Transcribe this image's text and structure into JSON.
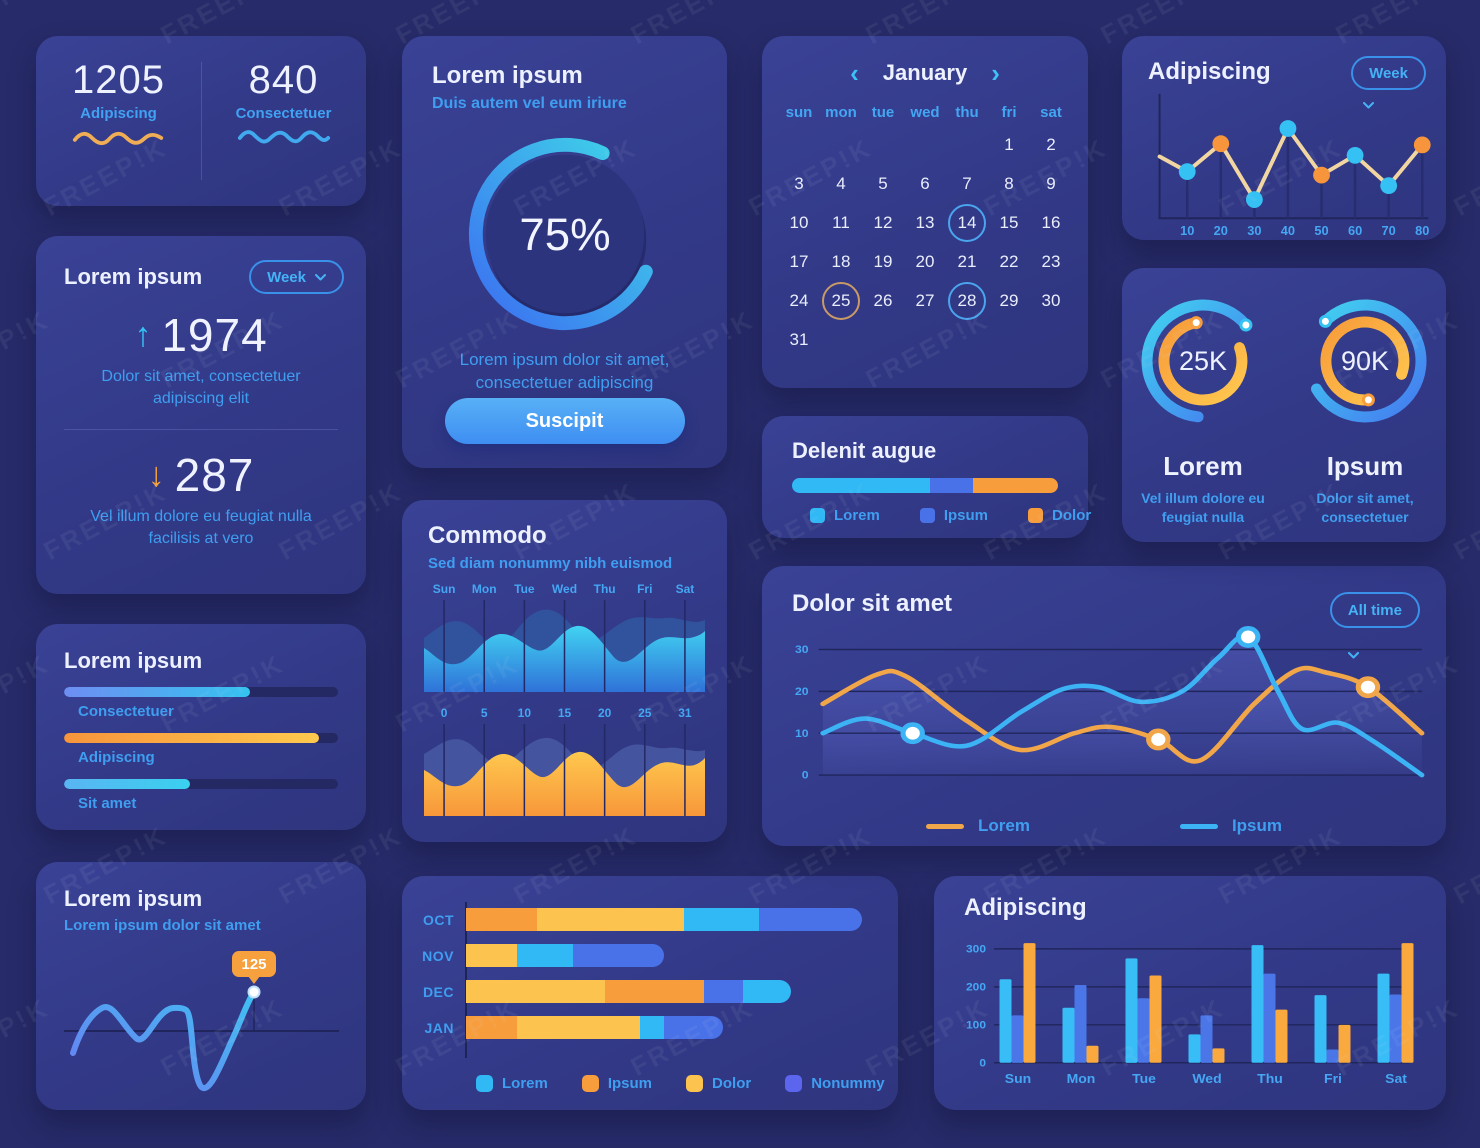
{
  "watermark": {
    "text": "FREEP!K"
  },
  "colors": {
    "background": "#272b69",
    "card": "#323987",
    "cyan": "#30b9f4",
    "orange": "#f79d3c",
    "yellow": "#fcc44e",
    "royal": "#4a72e8",
    "periwinkle": "#5b65ee",
    "text_blue": "#3f9ef0",
    "white": "#eef2ff",
    "tan_line": "#f2d6a2"
  },
  "cards": {
    "stats_duo": {
      "left": {
        "value": "1205",
        "label": "Adipiscing"
      },
      "right": {
        "value": "840",
        "label": "Consectetuer"
      }
    },
    "week_stats": {
      "title": "Lorem ipsum",
      "dropdown_label": "Week",
      "up": {
        "value": "1974",
        "desc": "Dolor sit amet, consectetuer adipiscing elit"
      },
      "down": {
        "value": "287",
        "desc": "Vel illum dolore eu feugiat nulla facilisis at vero"
      }
    },
    "progress": {
      "title": "Lorem ipsum",
      "bars": [
        {
          "label": "Consectetuer",
          "percent": 68,
          "color": "blue"
        },
        {
          "label": "Adipiscing",
          "percent": 93,
          "color": "orange"
        },
        {
          "label": "Sit amet",
          "percent": 46,
          "color": "cyan"
        }
      ]
    },
    "spline_card": {
      "title": "Lorem ipsum",
      "subtitle": "Lorem ipsum dolor sit amet",
      "tooltip_value": "125"
    },
    "gauge75": {
      "title": "Lorem ipsum",
      "subtitle": "Duis autem vel eum iriure",
      "percent": 75,
      "percent_label": "75%",
      "desc": "Lorem ipsum dolor sit amet, consectetuer adipiscing",
      "button_label": "Suscipit"
    },
    "commodo": {
      "title": "Commodo",
      "subtitle": "Sed diam nonummy nibh euismod",
      "day_labels": [
        "Sun",
        "Mon",
        "Tue",
        "Wed",
        "Thu",
        "Fri",
        "Sat"
      ],
      "tick_labels": [
        "0",
        "5",
        "10",
        "15",
        "20",
        "25",
        "31"
      ]
    },
    "calendar": {
      "month": "January",
      "prev_icon": "‹",
      "next_icon": "›",
      "day_names": [
        "sun",
        "mon",
        "tue",
        "wed",
        "thu",
        "fri",
        "sat"
      ],
      "weeks": [
        [
          "",
          "",
          "",
          "",
          "",
          "1",
          "2"
        ],
        [
          "3",
          "4",
          "5",
          "6",
          "7",
          "8",
          "9"
        ],
        [
          "10",
          "11",
          "12",
          "13",
          "14",
          "15",
          "16"
        ],
        [
          "17",
          "18",
          "19",
          "20",
          "21",
          "22",
          "23"
        ],
        [
          "24",
          "25",
          "26",
          "27",
          "28",
          "29",
          "30"
        ],
        [
          "31",
          "",
          "",
          "",
          "",
          "",
          ""
        ]
      ],
      "circled_blue": [
        "14",
        "28"
      ],
      "circled_orange": [
        "25"
      ]
    },
    "delenit": {
      "title": "Delenit augue",
      "segments": [
        {
          "name": "Lorem",
          "color": "cyan",
          "percent": 52
        },
        {
          "name": "Ipsum",
          "color": "royal",
          "percent": 16
        },
        {
          "name": "Dolor",
          "color": "orange",
          "percent": 32
        }
      ]
    },
    "dolor": {
      "title": "Dolor sit amet",
      "dropdown_label": "All time"
    },
    "adip_line": {
      "title": "Adipiscing",
      "dropdown_label": "Week"
    },
    "gauges_duo": {
      "left": {
        "value": "25K",
        "label": "Lorem",
        "desc": "Vel illum dolore eu feugiat nulla"
      },
      "right": {
        "value": "90K",
        "label": "Ipsum",
        "desc": "Dolor sit amet, consectetuer"
      }
    },
    "adip_bars": {
      "title": "Adipiscing"
    }
  },
  "chart_data": [
    {
      "id": "weekly_points",
      "type": "line",
      "title": "Adipiscing",
      "x_ticks": [
        "10",
        "20",
        "30",
        "40",
        "50",
        "60",
        "70",
        "80"
      ],
      "values": [
        40,
        64,
        16,
        77,
        37,
        54,
        28,
        63
      ],
      "start_value": 53,
      "point_colors": [
        "cyan",
        "orange",
        "cyan",
        "cyan",
        "orange",
        "cyan",
        "cyan",
        "orange"
      ],
      "ylim": [
        0,
        100
      ],
      "note": "unlabeled y axis, values estimated 0-100"
    },
    {
      "id": "dolor_lines",
      "type": "line",
      "title": "Dolor sit amet",
      "ylim": [
        0,
        35
      ],
      "y_ticks": [
        0,
        10,
        20,
        30
      ],
      "legend_position": "bottom",
      "series": [
        {
          "name": "Lorem",
          "color": "#f0a649",
          "points": [
            [
              0,
              17
            ],
            [
              9,
              24
            ],
            [
              14,
              23.5
            ],
            [
              24,
              13
            ],
            [
              33,
              6
            ],
            [
              42,
              10
            ],
            [
              48,
              11.5
            ],
            [
              56,
              8.5
            ],
            [
              63,
              3.5
            ],
            [
              72,
              17
            ],
            [
              79,
              25
            ],
            [
              84,
              24.5
            ],
            [
              91,
              21
            ],
            [
              100,
              10
            ]
          ],
          "markers": [
            [
              56,
              8.5
            ],
            [
              91,
              21
            ]
          ]
        },
        {
          "name": "Ipsum",
          "color": "#3cb3f5",
          "points": [
            [
              0,
              10
            ],
            [
              7,
              13.5
            ],
            [
              15,
              10
            ],
            [
              24,
              7
            ],
            [
              33,
              15
            ],
            [
              40,
              20.5
            ],
            [
              46,
              21
            ],
            [
              53,
              17.5
            ],
            [
              60,
              20
            ],
            [
              66,
              28
            ],
            [
              71,
              33
            ],
            [
              76,
              20
            ],
            [
              80,
              11
            ],
            [
              86,
              12.5
            ],
            [
              92,
              8
            ],
            [
              100,
              0
            ]
          ],
          "markers": [
            [
              15,
              10
            ],
            [
              71,
              33
            ]
          ]
        }
      ]
    },
    {
      "id": "monthly_stacked",
      "type": "bar",
      "orientation": "horizontal",
      "stacked": true,
      "categories": [
        "OCT",
        "NOV",
        "DEC",
        "JAN"
      ],
      "legend": [
        {
          "name": "Lorem",
          "color": "cyan"
        },
        {
          "name": "Ipsum",
          "color": "orange"
        },
        {
          "name": "Dolor",
          "color": "yellow"
        },
        {
          "name": "Nonummy",
          "color": "periwinkle"
        }
      ],
      "rows": [
        [
          {
            "color": "orange",
            "percent": 18
          },
          {
            "color": "yellow",
            "percent": 37
          },
          {
            "color": "cyan",
            "percent": 19
          },
          {
            "color": "royal",
            "percent": 26
          }
        ],
        [
          {
            "color": "yellow",
            "percent": 13
          },
          {
            "color": "cyan",
            "percent": 14
          },
          {
            "color": "royal",
            "percent": 23
          }
        ],
        [
          {
            "color": "yellow",
            "percent": 35
          },
          {
            "color": "orange",
            "percent": 25
          },
          {
            "color": "royal",
            "percent": 10
          },
          {
            "color": "cyan",
            "percent": 12
          }
        ],
        [
          {
            "color": "orange",
            "percent": 13
          },
          {
            "color": "yellow",
            "percent": 31
          },
          {
            "color": "cyan",
            "percent": 6
          },
          {
            "color": "royal",
            "percent": 15
          }
        ]
      ]
    },
    {
      "id": "daily_grouped",
      "type": "bar",
      "title": "Adipiscing",
      "categories": [
        "Sun",
        "Mon",
        "Tue",
        "Wed",
        "Thu",
        "Fri",
        "Sat"
      ],
      "y_ticks": [
        "300",
        "200",
        "100",
        "0"
      ],
      "ylim": [
        0,
        330
      ],
      "series": [
        {
          "name": "cyan",
          "color": "#38bdf7",
          "values": [
            220,
            145,
            275,
            75,
            310,
            178,
            235
          ]
        },
        {
          "name": "blue",
          "color": "#4a76e8",
          "values": [
            125,
            205,
            170,
            125,
            235,
            35,
            180
          ]
        },
        {
          "name": "orange",
          "color": "#f9a93e",
          "values": [
            315,
            45,
            230,
            38,
            140,
            100,
            315
          ]
        }
      ]
    },
    {
      "id": "commodo_areas",
      "type": "area",
      "x_top": [
        "Sun",
        "Mon",
        "Tue",
        "Wed",
        "Thu",
        "Fri",
        "Sat"
      ],
      "x_bottom": [
        "0",
        "5",
        "10",
        "15",
        "20",
        "25",
        "31"
      ],
      "note": "two decorative layered area waves (blue layers top, orange over blue bottom)"
    }
  ]
}
